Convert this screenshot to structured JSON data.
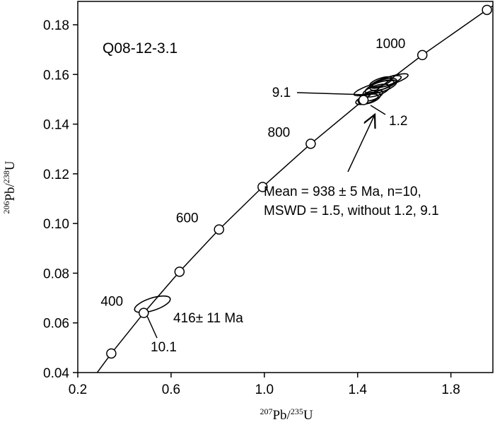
{
  "chart_data": {
    "type": "concordia",
    "title": "Q08-12-3.1",
    "xlabel": [
      "207",
      "Pb/",
      "235",
      "U"
    ],
    "ylabel": [
      "206",
      "Pb/",
      "238",
      "U"
    ],
    "xlim": [
      0.2,
      1.98
    ],
    "ylim": [
      0.04,
      0.1894
    ],
    "xticks": [
      0.2,
      0.6,
      {
        "value": 1.0,
        "label": "1.0"
      },
      1.4,
      1.8
    ],
    "yticks": [
      0.04,
      0.06,
      0.08,
      {
        "value": 0.1,
        "label": "0.10"
      },
      0.12,
      0.14,
      0.16,
      0.18
    ],
    "concordia": {
      "x": [
        0.2792,
        0.3437,
        0.4828,
        0.6362,
        0.8057,
        0.9925,
        1.1988,
        1.4253,
        1.6775,
        1.9546,
        2.043
      ],
      "y": [
        0.0395,
        0.0477,
        0.064,
        0.0806,
        0.0976,
        0.1147,
        0.1321,
        0.1497,
        0.1678,
        0.186,
        0.1916
      ],
      "marked": [
        false,
        true,
        true,
        true,
        true,
        true,
        true,
        true,
        true,
        true,
        false
      ],
      "labels": [
        null,
        null,
        "400",
        null,
        "600",
        null,
        "800",
        null,
        "1000",
        null,
        null
      ]
    },
    "ellipses": [
      {
        "x": 1.44,
        "y": 0.15,
        "x_err": 0.05,
        "y_err": 0.0016
      },
      {
        "x": 1.46,
        "y": 0.1515,
        "x_err": 0.05,
        "y_err": 0.0018
      },
      {
        "x": 1.48,
        "y": 0.1535,
        "x_err": 0.06,
        "y_err": 0.002
      },
      {
        "x": 1.5,
        "y": 0.155,
        "x_err": 0.07,
        "y_err": 0.002
      },
      {
        "x": 1.51,
        "y": 0.156,
        "x_err": 0.06,
        "y_err": 0.0018
      },
      {
        "x": 1.52,
        "y": 0.157,
        "x_err": 0.07,
        "y_err": 0.0016
      },
      {
        "x": 1.5,
        "y": 0.157,
        "x_err": 0.05,
        "y_err": 0.0015
      },
      {
        "x": 1.54,
        "y": 0.1575,
        "x_err": 0.08,
        "y_err": 0.0016
      },
      {
        "x": 1.47,
        "y": 0.1545,
        "x_err": 0.09,
        "y_err": 0.0017
      },
      {
        "x": 1.45,
        "y": 0.1505,
        "x_err": 0.05,
        "y_err": 0.002
      },
      {
        "x": 0.52,
        "y": 0.0675,
        "x_err": 0.08,
        "y_err": 0.0025
      }
    ],
    "annotations": {
      "spot_9_1": "9.1",
      "spot_1_2": "1.2",
      "mean_line1": "Mean = 938 ± 5 Ma, n=10,",
      "mean_line2": "MSWD = 1.5, without 1.2, 9.1",
      "age_10_1": "416± 11 Ma",
      "spot_10_1": "10.1"
    }
  }
}
